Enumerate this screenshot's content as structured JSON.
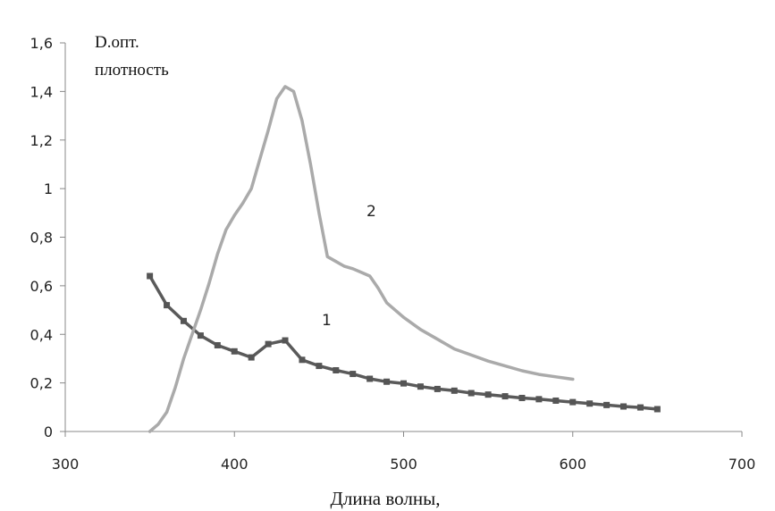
{
  "chart_data": {
    "type": "line",
    "title": "",
    "ylabel_lines": [
      "D.опт.",
      "плотность"
    ],
    "xlabel": "Длина волны,",
    "xlim": [
      300,
      700
    ],
    "ylim": [
      0,
      1.6
    ],
    "xticks": [
      "300",
      "400",
      "500",
      "600",
      "700"
    ],
    "yticks": [
      "0",
      "0,2",
      "0,4",
      "0,6",
      "0,8",
      "1",
      "1,2",
      "1,4",
      "1,6"
    ],
    "grid": false,
    "legend": "none",
    "series": [
      {
        "label": "1",
        "color": "#5a5a5a",
        "marker": "square",
        "x": [
          350,
          360,
          370,
          380,
          390,
          400,
          410,
          420,
          430,
          440,
          450,
          460,
          470,
          480,
          490,
          500,
          510,
          520,
          530,
          540,
          550,
          560,
          570,
          580,
          590,
          600,
          610,
          620,
          630,
          640,
          650
        ],
        "y": [
          0.64,
          0.52,
          0.455,
          0.395,
          0.355,
          0.33,
          0.305,
          0.36,
          0.375,
          0.295,
          0.27,
          0.252,
          0.237,
          0.217,
          0.205,
          0.198,
          0.185,
          0.175,
          0.168,
          0.158,
          0.152,
          0.145,
          0.138,
          0.133,
          0.127,
          0.121,
          0.115,
          0.109,
          0.103,
          0.099,
          0.092
        ]
      },
      {
        "label": "2",
        "color": "#aaaaaa",
        "marker": "none",
        "x": [
          350,
          355,
          360,
          365,
          370,
          375,
          380,
          385,
          390,
          395,
          400,
          405,
          410,
          415,
          420,
          425,
          430,
          435,
          440,
          445,
          450,
          455,
          460,
          465,
          470,
          475,
          480,
          485,
          490,
          500,
          510,
          520,
          530,
          540,
          550,
          560,
          570,
          580,
          590,
          600
        ],
        "y": [
          0.0,
          0.03,
          0.08,
          0.18,
          0.3,
          0.4,
          0.5,
          0.61,
          0.73,
          0.83,
          0.89,
          0.94,
          1.0,
          1.12,
          1.24,
          1.37,
          1.42,
          1.4,
          1.28,
          1.1,
          0.9,
          0.72,
          0.7,
          0.68,
          0.67,
          0.655,
          0.64,
          0.59,
          0.53,
          0.47,
          0.42,
          0.38,
          0.34,
          0.315,
          0.29,
          0.27,
          0.25,
          0.235,
          0.225,
          0.215
        ]
      }
    ]
  }
}
